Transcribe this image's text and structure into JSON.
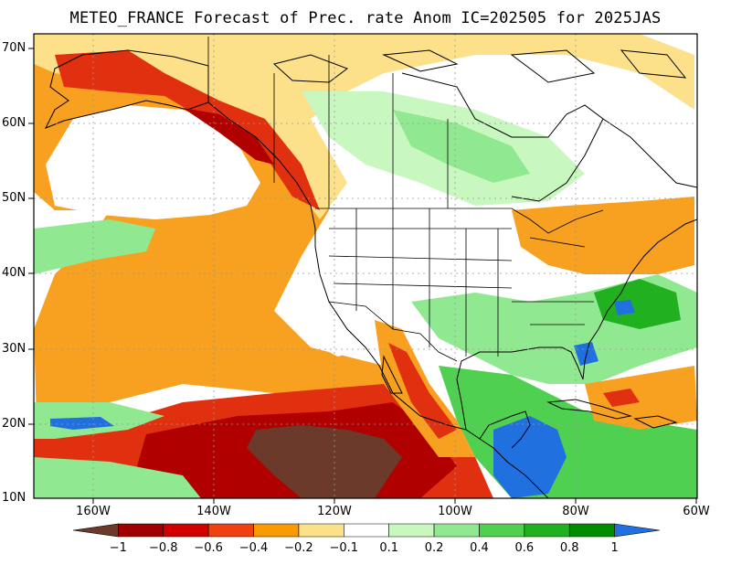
{
  "title": "METEO_FRANCE Forecast of Prec. rate Anom IC=202505 for 2025JAS",
  "lat_labels": [
    "70N",
    "60N",
    "50N",
    "40N",
    "30N",
    "20N",
    "10N"
  ],
  "lon_labels": [
    "160W",
    "140W",
    "120W",
    "100W",
    "80W",
    "60W"
  ],
  "colorbar": {
    "labels": [
      "−1",
      "−0.8",
      "−0.6",
      "−0.4",
      "−0.2",
      "−0.1",
      "0.1",
      "0.2",
      "0.4",
      "0.6",
      "0.8",
      "1"
    ],
    "colors": [
      "#6b3a2a",
      "#a00000",
      "#d00000",
      "#f04010",
      "#f89a00",
      "#fde08a",
      "#ffffff",
      "#c8f7c0",
      "#90e890",
      "#50d050",
      "#20b020",
      "#008c00",
      "#2070e0"
    ]
  },
  "map_colors": {
    "ocean_white": "#ffffff",
    "orange": "#f8a020",
    "light_orange": "#fde08a",
    "red": "#e03010",
    "dark_red": "#b00000",
    "brown": "#6b3a2a",
    "light_green": "#c8f7c0",
    "green": "#60d060",
    "dark_green": "#109010",
    "blue": "#2070e0",
    "coast": "#000000",
    "grid": "#9a9a9a"
  }
}
